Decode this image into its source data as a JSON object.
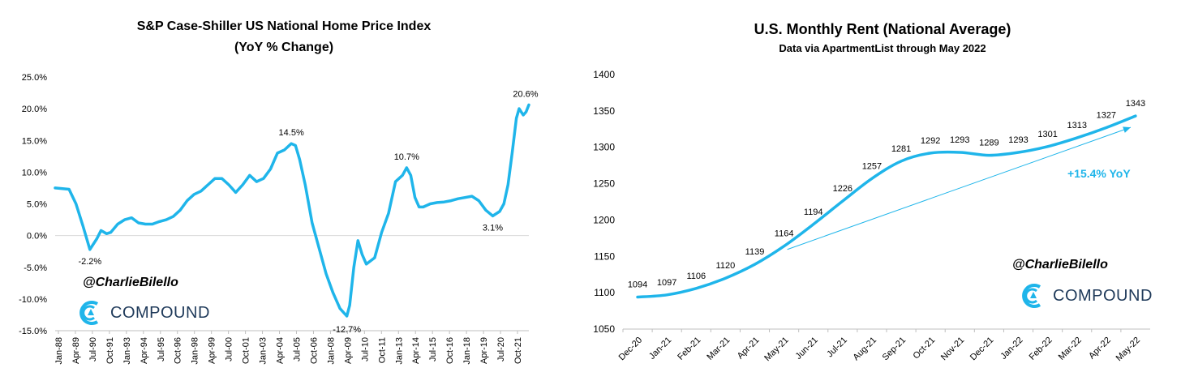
{
  "charts": {
    "left": {
      "title_line1": "S&P Case-Shiller US National Home Price Index",
      "title_line2": "(YoY % Change)",
      "handle": "@CharlieBilello",
      "logo_text": "COMPOUND"
    },
    "right": {
      "title": "U.S. Monthly Rent (National Average)",
      "subtitle": "Data via ApartmentList through May 2022",
      "handle": "@CharlieBilello",
      "logo_text": "COMPOUND",
      "annotation": "+15.4% YoY"
    }
  },
  "colors": {
    "line": "#1fb5ea",
    "accent_text": "#1fb5ea",
    "brand": "#1f3a5a"
  },
  "chart_data": [
    {
      "type": "line",
      "title": "S&P Case-Shiller US National Home Price Index (YoY % Change)",
      "xlabel": "",
      "ylabel": "",
      "ylim": [
        -15,
        25
      ],
      "ytick_labels": [
        "25.0%",
        "20.0%",
        "15.0%",
        "10.0%",
        "5.0%",
        "0.0%",
        "-5.0%",
        "-10.0%",
        "-15.0%"
      ],
      "ytick_values": [
        25,
        20,
        15,
        10,
        5,
        0,
        -5,
        -10,
        -15
      ],
      "xtick_labels": [
        "Jan-88",
        "Apr-89",
        "Jul-90",
        "Oct-91",
        "Jan-93",
        "Apr-94",
        "Jul-95",
        "Oct-96",
        "Jan-98",
        "Apr-99",
        "Jul-00",
        "Oct-01",
        "Jan-03",
        "Apr-04",
        "Jul-05",
        "Oct-06",
        "Jan-08",
        "Apr-09",
        "Jul-10",
        "Oct-11",
        "Jan-13",
        "Apr-14",
        "Jul-15",
        "Oct-16",
        "Jan-18",
        "Apr-19",
        "Jul-20",
        "Oct-21"
      ],
      "grid": false,
      "series": [
        {
          "x": [
            1988.0,
            1989.0,
            1989.5,
            1990.0,
            1990.5,
            1991.0,
            1991.3,
            1991.7,
            1992.0,
            1992.5,
            1993.0,
            1993.5,
            1994.0,
            1994.5,
            1995.0,
            1995.5,
            1996.0,
            1996.5,
            1997.0,
            1997.5,
            1998.0,
            1998.5,
            1999.0,
            1999.5,
            2000.0,
            2000.5,
            2001.0,
            2001.5,
            2002.0,
            2002.5,
            2003.0,
            2003.5,
            2004.0,
            2004.5,
            2005.0,
            2005.3,
            2005.6,
            2006.0,
            2006.5,
            2007.0,
            2007.5,
            2008.0,
            2008.5,
            2009.0,
            2009.2,
            2009.5,
            2009.8,
            2010.1,
            2010.4,
            2010.7,
            2011.0,
            2011.5,
            2012.0,
            2012.5,
            2013.0,
            2013.3,
            2013.6,
            2013.9,
            2014.2,
            2014.5,
            2015.0,
            2015.5,
            2016.0,
            2016.5,
            2017.0,
            2017.5,
            2018.0,
            2018.5,
            2019.0,
            2019.5,
            2020.0,
            2020.3,
            2020.6,
            2020.9,
            2021.2,
            2021.4,
            2021.7,
            2021.9,
            2022.1
          ],
          "y": [
            7.5,
            7.3,
            5.0,
            1.5,
            -2.2,
            -0.5,
            0.8,
            0.3,
            0.5,
            1.8,
            2.5,
            2.8,
            2.0,
            1.8,
            1.8,
            2.2,
            2.5,
            3.0,
            4.0,
            5.5,
            6.5,
            7.0,
            8.0,
            9.0,
            9.0,
            8.0,
            6.8,
            8.0,
            9.5,
            8.5,
            9.0,
            10.5,
            13.0,
            13.5,
            14.5,
            14.2,
            12.0,
            8.0,
            2.0,
            -2.0,
            -6.0,
            -9.0,
            -11.5,
            -12.7,
            -11.0,
            -5.0,
            -0.8,
            -3.0,
            -4.5,
            -4.0,
            -3.5,
            0.5,
            3.5,
            8.5,
            9.5,
            10.7,
            9.5,
            6.0,
            4.5,
            4.5,
            5.0,
            5.2,
            5.3,
            5.5,
            5.8,
            6.0,
            6.2,
            5.5,
            4.0,
            3.1,
            3.8,
            5.0,
            8.0,
            13.0,
            18.5,
            20.0,
            19.0,
            19.5,
            20.6
          ]
        }
      ],
      "annotations": [
        {
          "text": "14.5%",
          "x": 2005.0,
          "y": 14.5
        },
        {
          "text": "-2.2%",
          "x": 1990.5,
          "y": -2.2
        },
        {
          "text": "-12.7%",
          "x": 2009.0,
          "y": -12.7
        },
        {
          "text": "10.7%",
          "x": 2013.3,
          "y": 10.7
        },
        {
          "text": "3.1%",
          "x": 2019.5,
          "y": 3.1
        },
        {
          "text": "20.6%",
          "x": 2022.1,
          "y": 20.6
        }
      ]
    },
    {
      "type": "line",
      "title": "U.S. Monthly Rent (National Average)",
      "subtitle": "Data via ApartmentList through May 2022",
      "xlabel": "",
      "ylabel": "",
      "ylim": [
        1050,
        1400
      ],
      "ytick_values": [
        1400,
        1350,
        1300,
        1250,
        1200,
        1150,
        1100,
        1050
      ],
      "categories": [
        "Dec-20",
        "Jan-21",
        "Feb-21",
        "Mar-21",
        "Apr-21",
        "May-21",
        "Jun-21",
        "Jul-21",
        "Aug-21",
        "Sep-21",
        "Oct-21",
        "Nov-21",
        "Dec-21",
        "Jan-22",
        "Feb-22",
        "Mar-22",
        "Apr-22",
        "May-22"
      ],
      "grid": false,
      "series": [
        {
          "values": [
            1094,
            1097,
            1106,
            1120,
            1139,
            1164,
            1194,
            1226,
            1257,
            1281,
            1292,
            1293,
            1289,
            1293,
            1301,
            1313,
            1327,
            1343
          ]
        }
      ],
      "trend_arrow": {
        "from": "May-21",
        "to": "May-22",
        "label": "+15.4% YoY"
      }
    }
  ]
}
